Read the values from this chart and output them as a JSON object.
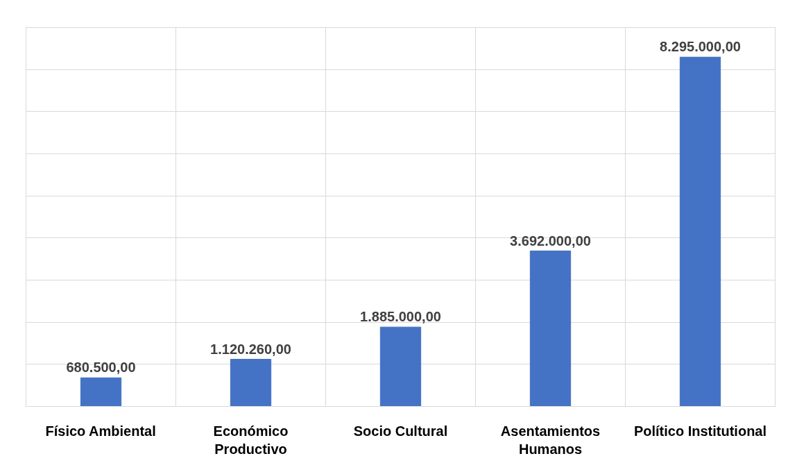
{
  "chart_data": {
    "type": "bar",
    "categories": [
      "Físico Ambiental",
      "Económico\nProductivo",
      "Socio Cultural",
      "Asentamientos\nHumanos",
      "Político Institutional"
    ],
    "values": [
      680500,
      1120260,
      1885000,
      3692000,
      8295000
    ],
    "value_labels": [
      "680.500,00",
      "1.120.260,00",
      "1.885.000,00",
      "3.692.000,00",
      "8.295.000,00"
    ],
    "color": "#4472c4",
    "ylim": [
      0,
      9000000
    ],
    "yticks": [
      {
        "value": 0,
        "label": null
      },
      {
        "value": 1000000,
        "label": null
      },
      {
        "value": 2000000,
        "label": null
      },
      {
        "value": 3000000,
        "label": null
      },
      {
        "value": 4000000,
        "label": null
      },
      {
        "value": 5000000,
        "label": null
      },
      {
        "value": 6000000,
        "label": null
      },
      {
        "value": 7000000,
        "label": null
      },
      {
        "value": 8000000,
        "label": null
      },
      {
        "value": 9000000,
        "label": null
      }
    ],
    "tick_labels": "x",
    "grid": true
  }
}
